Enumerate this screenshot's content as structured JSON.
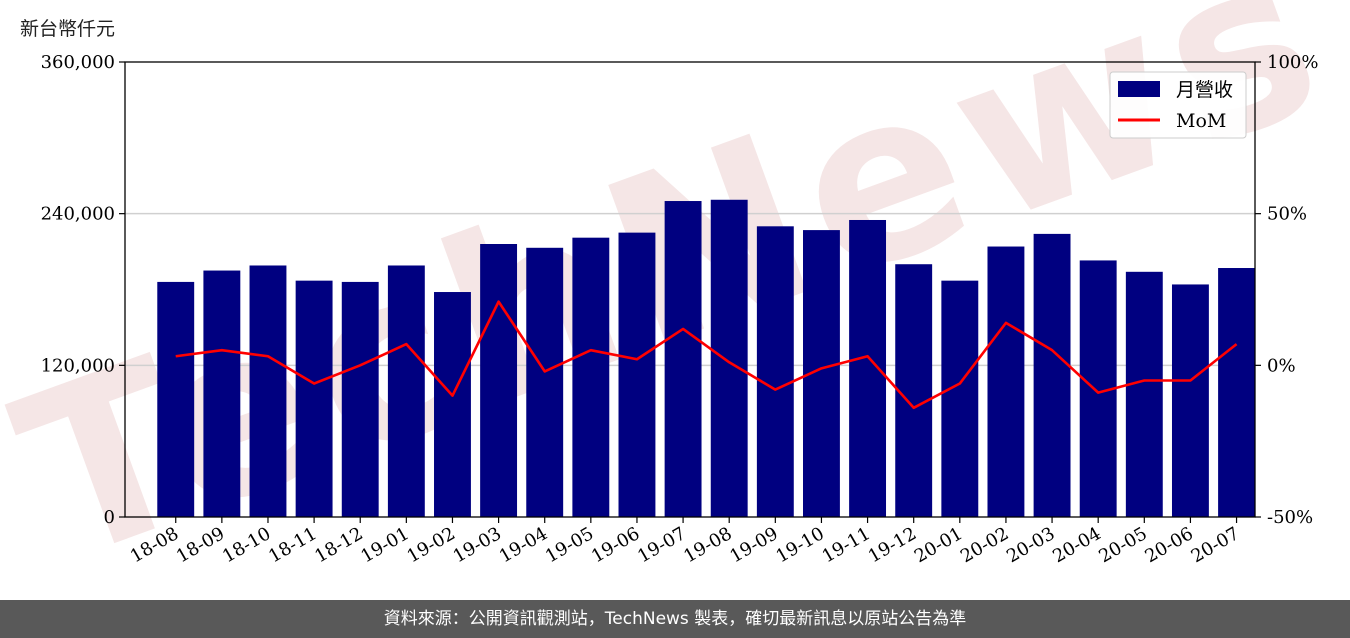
{
  "unit_label": "新台幣仟元",
  "footer": "資料來源：公開資訊觀測站，TechNews 製表，確切最新訊息以原站公告為準",
  "colors": {
    "bar": "#000080",
    "line": "#ff0000",
    "watermark": "#f3e3e3"
  },
  "chart_data": {
    "type": "bar",
    "categories": [
      "18-08",
      "18-09",
      "18-10",
      "18-11",
      "18-12",
      "19-01",
      "19-02",
      "19-03",
      "19-04",
      "19-05",
      "19-06",
      "19-07",
      "19-08",
      "19-09",
      "19-10",
      "19-11",
      "19-12",
      "20-01",
      "20-02",
      "20-03",
      "20-04",
      "20-05",
      "20-06",
      "20-07"
    ],
    "series": [
      {
        "name": "月營收",
        "type": "bar",
        "axis": "left",
        "values": [
          186000,
          195000,
          199000,
          187000,
          186000,
          199000,
          178000,
          216000,
          213000,
          221000,
          225000,
          250000,
          251000,
          230000,
          227000,
          235000,
          200000,
          187000,
          214000,
          224000,
          203000,
          194000,
          184000,
          197000
        ]
      },
      {
        "name": "MoM",
        "type": "line",
        "axis": "right",
        "values": [
          3,
          5,
          3,
          -6,
          0,
          7,
          -10,
          21,
          -2,
          5,
          2,
          12,
          1,
          -8,
          -1,
          3,
          -14,
          -6,
          14,
          5,
          -9,
          -5,
          -5,
          7
        ]
      }
    ],
    "y_left": {
      "lim": [
        0,
        360000
      ],
      "ticks": [
        0,
        120000,
        240000,
        360000
      ],
      "tick_labels": [
        "0",
        "120,000",
        "240,000",
        "360,000"
      ]
    },
    "y_right": {
      "lim": [
        -50,
        100
      ],
      "ticks": [
        -50,
        0,
        50,
        100
      ],
      "tick_labels": [
        "-50%",
        "0%",
        "50%",
        "100%"
      ]
    },
    "grid": "horizontal",
    "legend": "top-right"
  }
}
